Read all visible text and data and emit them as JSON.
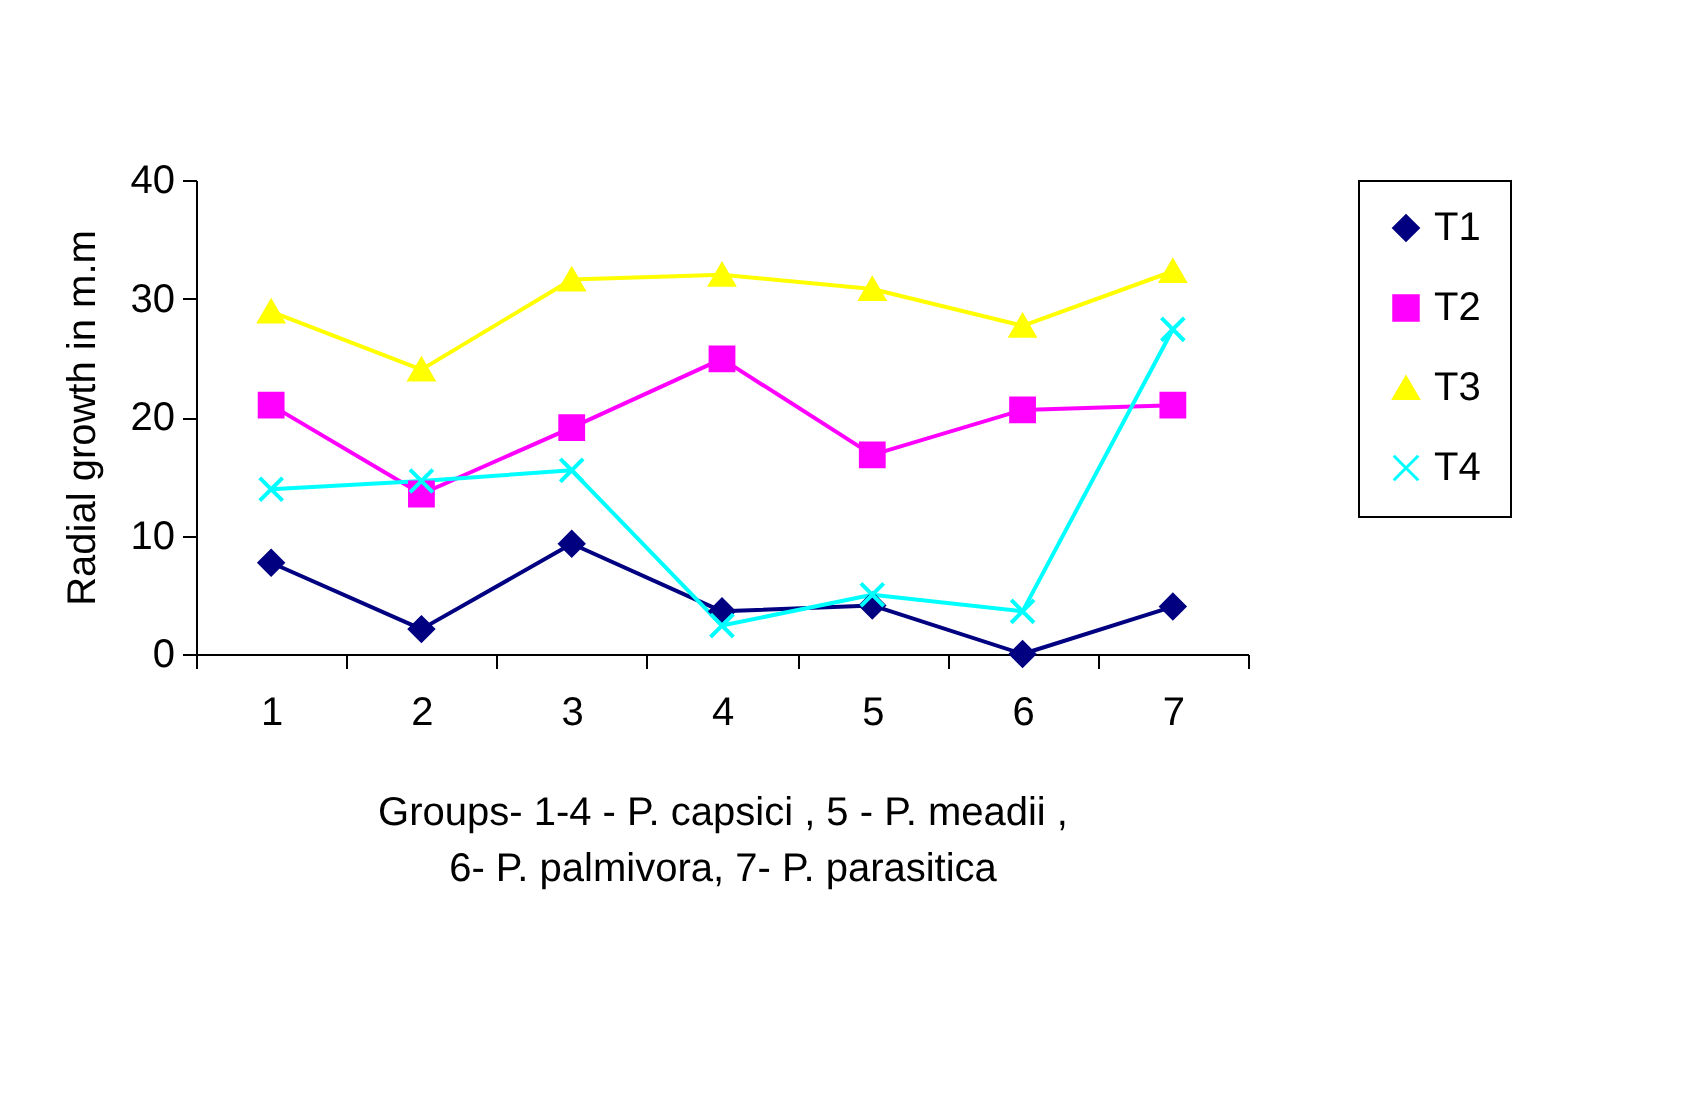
{
  "chart_data": {
    "type": "line",
    "xlabel": "Groups- 1-4 - P. capsici , 5 - P. meadii ,\n6- P. palmivora,  7- P. parasitica",
    "ylabel": "Radial growth in m.m",
    "categories": [
      "1",
      "2",
      "3",
      "4",
      "5",
      "6",
      "7"
    ],
    "series": [
      {
        "name": "T1",
        "color": "#000080",
        "marker": "diamond",
        "values": [
          7.7,
          2.1,
          9.3,
          3.6,
          4.1,
          0,
          4.0
        ]
      },
      {
        "name": "T2",
        "color": "#ff00ff",
        "marker": "square",
        "values": [
          21.0,
          13.5,
          19.1,
          24.9,
          16.8,
          20.6,
          21.0
        ]
      },
      {
        "name": "T3",
        "color": "#ffff00",
        "marker": "triangle",
        "values": [
          28.9,
          24.0,
          31.6,
          32.0,
          30.8,
          27.7,
          32.3
        ]
      },
      {
        "name": "T4",
        "color": "#00ffff",
        "marker": "cross",
        "values": [
          13.9,
          14.6,
          15.5,
          2.4,
          5.0,
          3.6,
          27.4
        ]
      }
    ],
    "ylim": [
      0,
      40
    ],
    "yticks": [
      0,
      10,
      20,
      30,
      40
    ],
    "grid": false,
    "legend": "right"
  }
}
